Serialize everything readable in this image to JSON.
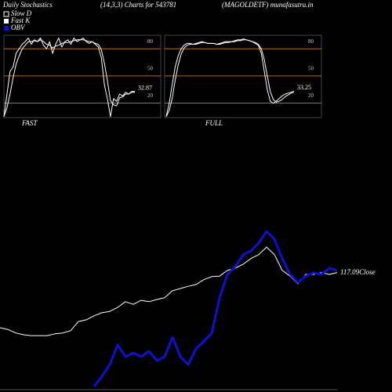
{
  "header": {
    "title": "Daily Stochastics",
    "subtitle": "(14,3,3) Charts for 543781",
    "site": "(MAGOLDETF) munafasutra.in"
  },
  "chart_data": [
    {
      "type": "line",
      "title": "FAST",
      "ylim": [
        4,
        95
      ],
      "yticks": [
        80,
        50,
        20
      ],
      "grid": true,
      "grid_color": "#b06a2a",
      "series": [
        {
          "name": "Slow D",
          "color": "#ffffff",
          "values": [
            5,
            15,
            30,
            48,
            63,
            72,
            80,
            84,
            88,
            88,
            89,
            88,
            90,
            88,
            85,
            84,
            81,
            83,
            84,
            86,
            87,
            87,
            88,
            89,
            90,
            90,
            90,
            89,
            88,
            88,
            86,
            85,
            79,
            64,
            45,
            23,
            18,
            17,
            26,
            27,
            30,
            30,
            32,
            32
          ]
        },
        {
          "name": "Fast K",
          "color": "#ffffff",
          "values": [
            5,
            30,
            55,
            60,
            75,
            80,
            85,
            88,
            92,
            85,
            90,
            88,
            92,
            84,
            80,
            88,
            75,
            85,
            92,
            82,
            88,
            90,
            85,
            92,
            88,
            90,
            92,
            88,
            86,
            88,
            85,
            82,
            70,
            40,
            25,
            5,
            25,
            22,
            30,
            28,
            32,
            30,
            33,
            32.87
          ]
        }
      ]
    },
    {
      "type": "line",
      "title": "FULL",
      "ylim": [
        4,
        95
      ],
      "yticks": [
        80,
        50,
        20
      ],
      "grid": true,
      "grid_color": "#b06a2a",
      "series": [
        {
          "color": "#ffffff",
          "values": [
            5,
            12,
            25,
            45,
            62,
            74,
            81,
            84,
            85,
            85,
            85,
            86,
            87,
            87,
            86,
            86,
            86,
            85,
            85,
            86,
            87,
            87,
            88,
            88,
            89,
            89,
            90,
            90,
            89,
            88,
            87,
            85,
            80,
            68,
            50,
            33,
            24,
            21,
            22,
            24,
            27,
            29,
            31,
            32
          ]
        },
        {
          "color": "#ffffff",
          "values": [
            5,
            20,
            40,
            60,
            72,
            80,
            84,
            86,
            86,
            85,
            86,
            87,
            88,
            87,
            86,
            86,
            86,
            85,
            86,
            87,
            88,
            88,
            88,
            89,
            90,
            90,
            91,
            90,
            89,
            88,
            86,
            84,
            75,
            55,
            35,
            22,
            20,
            22,
            25,
            28,
            30,
            31,
            32,
            33.25
          ]
        }
      ]
    },
    {
      "type": "line",
      "close_label": "Close",
      "ylim": [
        90,
        136.28
      ],
      "y2lim": [
        0,
        100
      ],
      "series": [
        {
          "name": "Close",
          "color": "#ffffff",
          "values": [
            104.6,
            104.2,
            103.4,
            103.0,
            102.8,
            102.8,
            102.8,
            103.2,
            103.4,
            103.9,
            106.0,
            106.4,
            107.3,
            108.0,
            108.3,
            109.2,
            110.5,
            109.9,
            110.8,
            110.5,
            111.0,
            111.4,
            113.0,
            113.5,
            114.0,
            114.4,
            115.5,
            116.2,
            116.3,
            117.6,
            118.1,
            119.0,
            120.3,
            121.2,
            122.9,
            121.2,
            117.6,
            116.3,
            114.6,
            116.7,
            116.7,
            117.1,
            116.7,
            117.09
          ]
        },
        {
          "name": "OBV",
          "color": "#1010d0",
          "axis": "y2",
          "values": [
            null,
            null,
            null,
            null,
            null,
            null,
            null,
            null,
            null,
            null,
            null,
            null,
            2.7,
            7.7,
            13.5,
            23.1,
            17.3,
            19.2,
            17.3,
            20,
            15.4,
            17.3,
            26.9,
            17.3,
            13.5,
            21.2,
            25,
            28.8,
            46.2,
            57.7,
            61.5,
            67.3,
            69.2,
            73.1,
            78.8,
            75,
            65.4,
            57.7,
            53.8,
            56.9,
            58.5,
            57.7,
            60.8,
            59.6
          ]
        }
      ]
    }
  ]
}
